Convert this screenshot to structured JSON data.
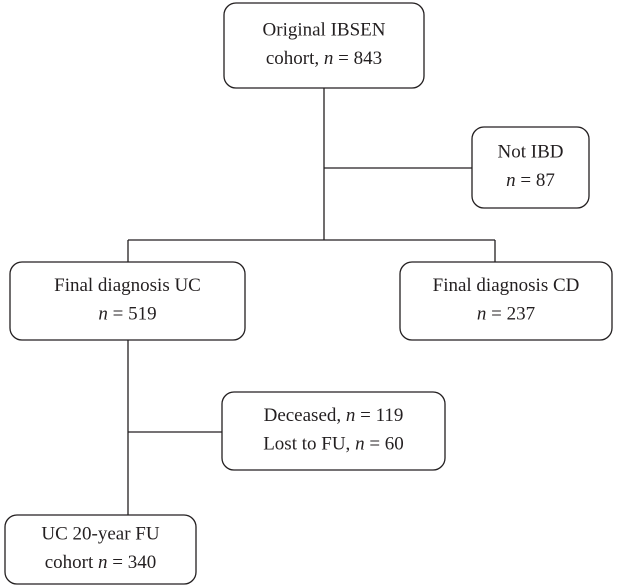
{
  "nodes": [
    {
      "lines": [
        [
          {
            "text": "Original IBSEN"
          }
        ],
        [
          {
            "text": "cohort, "
          },
          {
            "text": "n",
            "italic": true
          },
          {
            "text": " = 843"
          }
        ]
      ]
    },
    {
      "lines": [
        [
          {
            "text": "Not IBD"
          }
        ],
        [
          {
            "text": "n",
            "italic": true
          },
          {
            "text": " = 87"
          }
        ]
      ]
    },
    {
      "lines": [
        [
          {
            "text": "Final diagnosis UC"
          }
        ],
        [
          {
            "text": "n",
            "italic": true
          },
          {
            "text": " = 519"
          }
        ]
      ]
    },
    {
      "lines": [
        [
          {
            "text": "Final diagnosis CD"
          }
        ],
        [
          {
            "text": "n",
            "italic": true
          },
          {
            "text": " = 237"
          }
        ]
      ]
    },
    {
      "lines": [
        [
          {
            "text": "Deceased, "
          },
          {
            "text": "n",
            "italic": true
          },
          {
            "text": " = 119"
          }
        ],
        [
          {
            "text": "Lost to FU, "
          },
          {
            "text": "n",
            "italic": true
          },
          {
            "text": " = 60"
          }
        ]
      ]
    },
    {
      "lines": [
        [
          {
            "text": "UC 20-year FU"
          }
        ],
        [
          {
            "text": "cohort "
          },
          {
            "text": "n",
            "italic": true
          },
          {
            "text": " = 340"
          }
        ]
      ]
    }
  ]
}
